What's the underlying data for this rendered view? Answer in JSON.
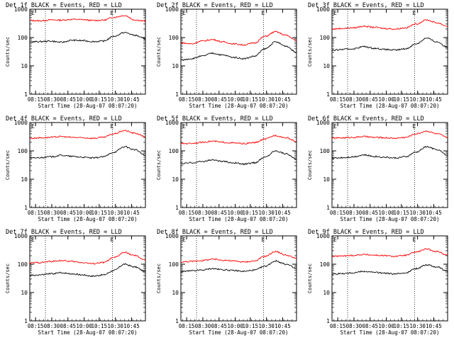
{
  "chart_data": [
    {
      "type": "line",
      "title": "Det 1f BLACK = Events, RED = LLD",
      "ylabel": "Counts/sec",
      "xlabel": "Start Time (28-Aug-07 08:07:20)",
      "yscale": "log",
      "ylim": [
        1,
        1000
      ],
      "yticks": [
        "1",
        "10",
        "100",
        "1000"
      ],
      "xticks": [
        "08:15",
        "08:30",
        "08:45",
        "10:00",
        "10:15",
        "10:30",
        "10:45"
      ],
      "vlines": [
        "08:30",
        "10:30"
      ],
      "markers": [
        "E",
        "E"
      ],
      "series": [
        {
          "color": "#ff0000",
          "values": [
            400,
            390,
            420,
            410,
            440,
            430,
            400,
            410,
            520,
            600,
            420,
            380
          ]
        },
        {
          "color": "#000000",
          "values": [
            70,
            72,
            75,
            68,
            80,
            78,
            72,
            75,
            110,
            150,
            120,
            90
          ]
        }
      ]
    },
    {
      "type": "line",
      "title": "Det 2f BLACK = Events, RED = LLD",
      "ylabel": "Counts/sec",
      "xlabel": "Start Time (28-Aug-07 08:07:20)",
      "yscale": "log",
      "ylim": [
        1,
        1000
      ],
      "yticks": [
        "1",
        "10",
        "100",
        "1000"
      ],
      "xticks": [
        "08:15",
        "08:30",
        "08:45",
        "10:00",
        "10:15",
        "10:30",
        "10:45"
      ],
      "vlines": [
        "08:30",
        "10:30"
      ],
      "markers": [
        "E",
        "E"
      ],
      "series": [
        {
          "color": "#ff0000",
          "values": [
            65,
            60,
            75,
            85,
            70,
            60,
            55,
            65,
            110,
            160,
            120,
            80
          ]
        },
        {
          "color": "#000000",
          "values": [
            16,
            18,
            22,
            28,
            24,
            20,
            18,
            22,
            40,
            70,
            50,
            30
          ]
        }
      ]
    },
    {
      "type": "line",
      "title": "Det 3f BLACK = Events, RED = LLD",
      "ylabel": "Counts/sec",
      "xlabel": "Start Time (28-Aug-07 08:07:20)",
      "yscale": "log",
      "ylim": [
        1,
        1000
      ],
      "yticks": [
        "1",
        "10",
        "100",
        "1000"
      ],
      "xticks": [
        "08:15",
        "08:30",
        "08:45",
        "10:00",
        "10:15",
        "10:30",
        "10:45"
      ],
      "vlines": [
        "08:30",
        "10:30"
      ],
      "markers": [
        "E",
        "E"
      ],
      "series": [
        {
          "color": "#ff0000",
          "values": [
            200,
            210,
            220,
            250,
            230,
            210,
            200,
            220,
            300,
            420,
            330,
            250
          ]
        },
        {
          "color": "#000000",
          "values": [
            35,
            38,
            40,
            48,
            42,
            38,
            36,
            40,
            60,
            95,
            70,
            45
          ]
        }
      ]
    },
    {
      "type": "line",
      "title": "Det 4f BLACK = Events, RED = LLD",
      "ylabel": "Counts/sec",
      "xlabel": "Start Time (28-Aug-07 08:07:20)",
      "yscale": "log",
      "ylim": [
        1,
        1000
      ],
      "yticks": [
        "1",
        "10",
        "100",
        "1000"
      ],
      "xticks": [
        "08:15",
        "08:30",
        "08:45",
        "10:00",
        "10:15",
        "10:30",
        "10:45"
      ],
      "vlines": [
        "08:30",
        "10:30"
      ],
      "markers": [
        "E",
        "E"
      ],
      "series": [
        {
          "color": "#ff0000",
          "values": [
            280,
            290,
            300,
            320,
            300,
            290,
            280,
            300,
            400,
            520,
            420,
            320
          ]
        },
        {
          "color": "#000000",
          "values": [
            55,
            58,
            62,
            70,
            64,
            60,
            56,
            62,
            90,
            140,
            110,
            70
          ]
        }
      ]
    },
    {
      "type": "line",
      "title": "Det 5f BLACK = Events, RED = LLD",
      "ylabel": "Counts/sec",
      "xlabel": "Start Time (28-Aug-07 08:07:20)",
      "yscale": "log",
      "ylim": [
        1,
        1000
      ],
      "yticks": [
        "1",
        "10",
        "100",
        "1000"
      ],
      "xticks": [
        "08:15",
        "08:30",
        "08:45",
        "10:00",
        "10:15",
        "10:30",
        "10:45"
      ],
      "vlines": [
        "08:30",
        "10:30"
      ],
      "markers": [
        "E",
        "E"
      ],
      "series": [
        {
          "color": "#ff0000",
          "values": [
            180,
            185,
            200,
            220,
            200,
            190,
            180,
            195,
            260,
            350,
            290,
            220
          ]
        },
        {
          "color": "#000000",
          "values": [
            35,
            38,
            42,
            48,
            42,
            38,
            34,
            38,
            60,
            100,
            80,
            50
          ]
        }
      ]
    },
    {
      "type": "line",
      "title": "Det 6f BLACK = Events, RED = LLD",
      "ylabel": "Counts/sec",
      "xlabel": "Start Time (28-Aug-07 08:07:20)",
      "yscale": "log",
      "ylim": [
        1,
        1000
      ],
      "yticks": [
        "1",
        "10",
        "100",
        "1000"
      ],
      "xticks": [
        "08:15",
        "08:30",
        "08:45",
        "10:00",
        "10:15",
        "10:30",
        "10:45"
      ],
      "vlines": [
        "08:30",
        "10:30"
      ],
      "markers": [
        "E",
        "E"
      ],
      "series": [
        {
          "color": "#ff0000",
          "values": [
            280,
            290,
            300,
            320,
            300,
            290,
            280,
            300,
            400,
            500,
            400,
            300
          ]
        },
        {
          "color": "#000000",
          "values": [
            55,
            58,
            62,
            72,
            64,
            60,
            56,
            62,
            90,
            140,
            110,
            70
          ]
        }
      ]
    },
    {
      "type": "line",
      "title": "Det 7f BLACK = Events, RED = LLD",
      "ylabel": "Counts/sec",
      "xlabel": "Start Time (28-Aug-07 08:07:20)",
      "yscale": "log",
      "ylim": [
        1,
        1000
      ],
      "yticks": [
        "1",
        "10",
        "100",
        "1000"
      ],
      "xticks": [
        "08:15",
        "08:30",
        "08:45",
        "10:00",
        "10:15",
        "10:30",
        "10:45"
      ],
      "vlines": [
        "08:30",
        "10:30"
      ],
      "markers": [
        "E",
        "E"
      ],
      "series": [
        {
          "color": "#ff0000",
          "values": [
            110,
            115,
            125,
            135,
            125,
            115,
            105,
            115,
            170,
            260,
            200,
            140
          ]
        },
        {
          "color": "#000000",
          "values": [
            40,
            42,
            46,
            50,
            46,
            42,
            38,
            42,
            60,
            100,
            80,
            55
          ]
        }
      ]
    },
    {
      "type": "line",
      "title": "Det 8f BLACK = Events, RED = LLD",
      "ylabel": "Counts/sec",
      "xlabel": "Start Time (28-Aug-07 08:07:20)",
      "yscale": "log",
      "ylim": [
        1,
        1000
      ],
      "yticks": [
        "1",
        "10",
        "100",
        "1000"
      ],
      "xticks": [
        "08:15",
        "08:30",
        "08:45",
        "10:00",
        "10:15",
        "10:30",
        "10:45"
      ],
      "vlines": [
        "08:30",
        "10:30"
      ],
      "markers": [
        "E",
        "E"
      ],
      "series": [
        {
          "color": "#ff0000",
          "values": [
            120,
            125,
            135,
            150,
            140,
            130,
            120,
            130,
            190,
            280,
            210,
            160
          ]
        },
        {
          "color": "#000000",
          "values": [
            55,
            58,
            62,
            70,
            64,
            60,
            56,
            62,
            85,
            130,
            100,
            70
          ]
        }
      ]
    },
    {
      "type": "line",
      "title": "Det 9f BLACK = Events, RED = LLD",
      "ylabel": "Counts/sec",
      "xlabel": "Start Time (28-Aug-07 08:07:20)",
      "yscale": "log",
      "ylim": [
        1,
        1000
      ],
      "yticks": [
        "1",
        "10",
        "100",
        "1000"
      ],
      "xticks": [
        "08:15",
        "08:30",
        "08:45",
        "10:00",
        "10:15",
        "10:30",
        "10:45"
      ],
      "vlines": [
        "08:30",
        "10:30"
      ],
      "markers": [
        "E",
        "E"
      ],
      "series": [
        {
          "color": "#ff0000",
          "values": [
            190,
            195,
            205,
            220,
            210,
            200,
            190,
            205,
            270,
            340,
            280,
            210
          ]
        },
        {
          "color": "#000000",
          "values": [
            45,
            47,
            50,
            56,
            52,
            48,
            45,
            50,
            70,
            95,
            80,
            55
          ]
        }
      ]
    }
  ]
}
